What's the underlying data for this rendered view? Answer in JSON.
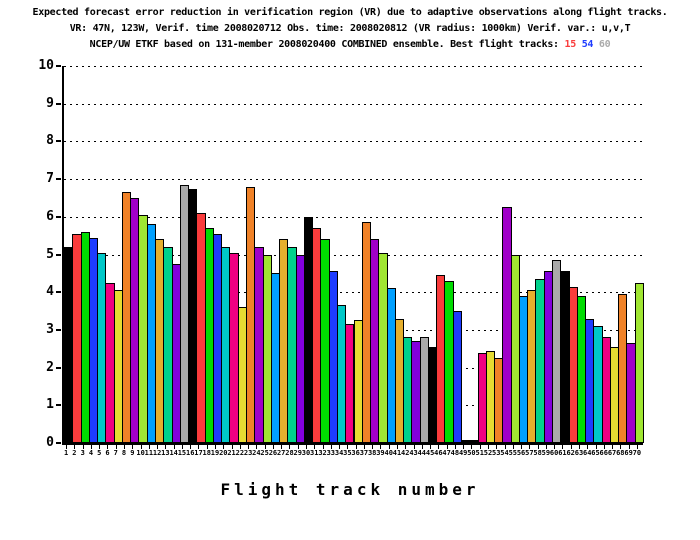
{
  "title": {
    "line1": "Expected forecast error reduction in verification region (VR) due to adaptive observations along flight tracks.",
    "line2": "VR: 47N, 123W, Verif. time 2008020712 Obs. time: 2008020812 (VR radius: 1000km)  Verif. var.: u,v,T",
    "line3_prefix": "NCEP/UW ETKF based on 131-member 2008020400 COMBINED ensemble.  Best flight tracks:",
    "best_tracks": [
      {
        "label": "15",
        "color": "#FA3C3C"
      },
      {
        "label": "54",
        "color": "#1E3CFF"
      },
      {
        "label": "60",
        "color": "#AAAAAA"
      }
    ]
  },
  "axes": {
    "xlabel": "Flight track number",
    "yticks": [
      0,
      1,
      2,
      3,
      4,
      5,
      6,
      7,
      8,
      9,
      10
    ]
  },
  "palette": {
    "black": "#000000",
    "red": "#FA3C3C",
    "green": "#00DC00",
    "blue": "#1E3CFF",
    "cyan": "#00C8C8",
    "magenta": "#F00082",
    "yellow": "#E6DC32",
    "orange": "#F08228",
    "purple": "#A000C8",
    "yellowgreen": "#A0E632",
    "lightblue": "#00A0FF",
    "darkyellow": "#E6AF2D",
    "aqua": "#00D28C",
    "violet": "#8200DC",
    "gray": "#AAAAAA"
  },
  "chart_data": {
    "type": "bar",
    "title": "Expected forecast error reduction in verification region (VR) due to adaptive observations along flight tracks. VR: 47N, 123W, Verif. time 2008020712 Obs. time: 2008020812 (VR radius: 1000km) Verif. var.: u,v,T. NCEP/UW ETKF based on 131-member 2008020400 COMBINED ensemble. Best flight tracks: 15 54 60",
    "xlabel": "Flight track number",
    "ylabel": "",
    "ylim": [
      0,
      10
    ],
    "grid": "dotted horizontal lines at every integer 1-10",
    "legend": "none",
    "best_flight_tracks": [
      15,
      54,
      60
    ],
    "x": [
      1,
      2,
      3,
      4,
      5,
      6,
      7,
      8,
      9,
      10,
      11,
      12,
      13,
      14,
      15,
      16,
      17,
      18,
      19,
      20,
      21,
      22,
      23,
      24,
      25,
      26,
      27,
      28,
      29,
      30,
      31,
      32,
      33,
      34,
      35,
      36,
      37,
      38,
      39,
      40,
      41,
      42,
      43,
      44,
      45,
      46,
      47,
      48,
      49,
      50,
      51,
      52,
      53,
      54,
      55,
      56,
      57,
      58,
      59,
      60,
      61,
      62,
      63,
      64,
      65,
      66,
      67,
      68,
      69,
      70
    ],
    "values": [
      5.2,
      5.55,
      5.6,
      5.45,
      5.05,
      4.25,
      4.05,
      6.65,
      6.5,
      6.05,
      5.8,
      5.4,
      5.2,
      4.75,
      6.85,
      6.75,
      6.1,
      5.7,
      5.55,
      5.2,
      5.05,
      3.6,
      6.8,
      5.2,
      5.0,
      4.5,
      5.4,
      5.2,
      5.0,
      6.0,
      5.7,
      5.4,
      4.55,
      3.65,
      3.15,
      3.25,
      5.85,
      5.4,
      5.05,
      4.1,
      3.3,
      2.8,
      2.7,
      2.8,
      2.55,
      4.45,
      4.3,
      3.5,
      0.08,
      0.08,
      2.4,
      2.45,
      2.25,
      6.25,
      5.0,
      3.9,
      4.05,
      4.35,
      4.55,
      4.85,
      4.55,
      4.15,
      3.9,
      3.3,
      3.1,
      2.8,
      2.55,
      3.95,
      2.65,
      4.25
    ],
    "bar_colors": [
      "#000000",
      "#FA3C3C",
      "#00DC00",
      "#1E3CFF",
      "#00C8C8",
      "#F00082",
      "#E6DC32",
      "#F08228",
      "#A000C8",
      "#A0E632",
      "#00A0FF",
      "#E6AF2D",
      "#00D28C",
      "#8200DC",
      "#AAAAAA",
      "#000000",
      "#FA3C3C",
      "#00DC00",
      "#1E3CFF",
      "#00C8C8",
      "#F00082",
      "#E6DC32",
      "#F08228",
      "#A000C8",
      "#A0E632",
      "#00A0FF",
      "#E6AF2D",
      "#00D28C",
      "#8200DC",
      "#000000",
      "#FA3C3C",
      "#00DC00",
      "#1E3CFF",
      "#00C8C8",
      "#F00082",
      "#E6DC32",
      "#F08228",
      "#A000C8",
      "#A0E632",
      "#00A0FF",
      "#E6AF2D",
      "#00D28C",
      "#8200DC",
      "#AAAAAA",
      "#000000",
      "#FA3C3C",
      "#00DC00",
      "#1E3CFF",
      "#000000",
      "#000000",
      "#F00082",
      "#E6DC32",
      "#F08228",
      "#A000C8",
      "#A0E632",
      "#00A0FF",
      "#E6AF2D",
      "#00D28C",
      "#8200DC",
      "#AAAAAA",
      "#000000",
      "#FA3C3C",
      "#00DC00",
      "#1E3CFF",
      "#00C8C8",
      "#F00082",
      "#E6DC32",
      "#F08228",
      "#A000C8",
      "#A0E632"
    ]
  }
}
